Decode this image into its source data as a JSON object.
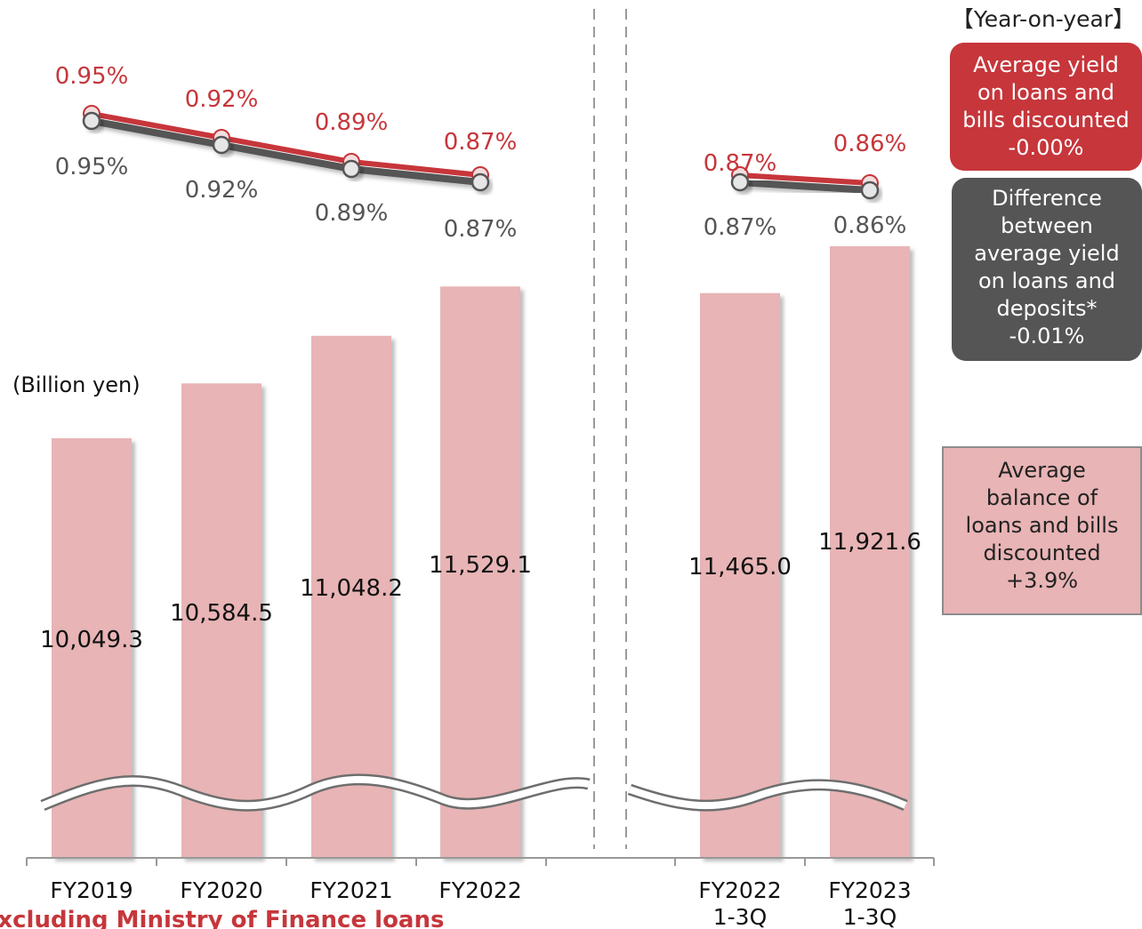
{
  "chart_data": {
    "type": "bar+line",
    "categories": [
      "FY2019",
      "FY2020",
      "FY2021",
      "FY2022",
      "FY2022 1-3Q",
      "FY2023 1-3Q"
    ],
    "ylabel": "(Billion yen)",
    "axis_break": true,
    "bar_series": {
      "name": "Average balance of loans and bills discounted",
      "values": [
        10049.3,
        10584.5,
        11048.2,
        11529.1,
        11465.0,
        11921.6
      ],
      "labels": [
        "10,049.3",
        "10,584.5",
        "11,048.2",
        "11,529.1",
        "11,465.0",
        "11,921.6"
      ],
      "color": "#e8b4b5"
    },
    "line_series": [
      {
        "name": "Average yield on loans and bills discounted",
        "values": [
          0.95,
          0.92,
          0.89,
          0.87,
          0.87,
          0.86
        ],
        "labels": [
          "0.95%",
          "0.92%",
          "0.89%",
          "0.87%",
          "0.87%",
          "0.86%"
        ],
        "color": "#c6363b"
      },
      {
        "name": "Difference between average yield on loans and deposits*",
        "values": [
          0.95,
          0.92,
          0.89,
          0.87,
          0.87,
          0.86
        ],
        "labels": [
          "0.95%",
          "0.92%",
          "0.89%",
          "0.87%",
          "0.87%",
          "0.86%"
        ],
        "color": "#555555"
      }
    ],
    "category_labels": [
      [
        "FY2019"
      ],
      [
        "FY2020"
      ],
      [
        "FY2021"
      ],
      [
        "FY2022"
      ],
      [
        "FY2022",
        "1-3Q"
      ],
      [
        "FY2023",
        "1-3Q"
      ]
    ]
  },
  "yoy": {
    "title": "【Year-on-year】",
    "yield_box": [
      "Average yield",
      "on loans and",
      "bills discounted",
      "-0.00%"
    ],
    "diff_box": [
      "Difference",
      "between",
      "average yield",
      "on loans and",
      "deposits*",
      "-0.01%"
    ],
    "balance_box": [
      "Average",
      "balance of",
      "loans and bills",
      "discounted",
      "+3.9%"
    ]
  },
  "footnote": "*Excluding Ministry of Finance loans"
}
